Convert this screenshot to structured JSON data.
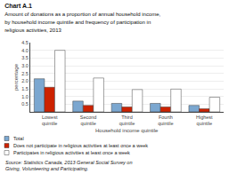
{
  "chart_data": {
    "type": "bar",
    "title": "Chart A.1",
    "subtitle": [
      "Amount of donations as a proportion of annual household income,",
      "by household income quintile and frequency of participation in",
      "religious activities, 2013"
    ],
    "xlabel": "Household income quintile",
    "ylabel": "percentage",
    "categories": [
      "Lowest quintile",
      "Second quintile",
      "Third quintile",
      "Fourth quintile",
      "Highest quintile"
    ],
    "series": [
      {
        "name": "Total",
        "color": "#7BA7D0",
        "values": [
          2.15,
          0.7,
          0.55,
          0.55,
          0.42
        ]
      },
      {
        "name": "Does not participate in religious activities at least once a week",
        "color": "#CC2200",
        "values": [
          1.6,
          0.42,
          0.32,
          0.32,
          0.2
        ]
      },
      {
        "name": "Participates in religious activities at least once a week",
        "color": "#FFFFFF",
        "values": [
          4.0,
          2.2,
          1.45,
          1.48,
          0.95
        ]
      }
    ],
    "ylim": [
      0,
      4.5
    ],
    "yticks": [
      0.5,
      {
        "value": 1.0,
        "label": "1.0"
      },
      1.5,
      {
        "value": 2.0,
        "label": "2.0"
      },
      2.5,
      {
        "value": 3.0,
        "label": "3.0"
      },
      3.5,
      {
        "value": 4.0,
        "label": "4.0"
      },
      4.5
    ],
    "grid": true,
    "legend": "lower left",
    "annotations": [
      {
        "text": "Source: Statistics Canada, 2013 General Social Survey on Giving, Volunteering and Participating."
      }
    ]
  }
}
